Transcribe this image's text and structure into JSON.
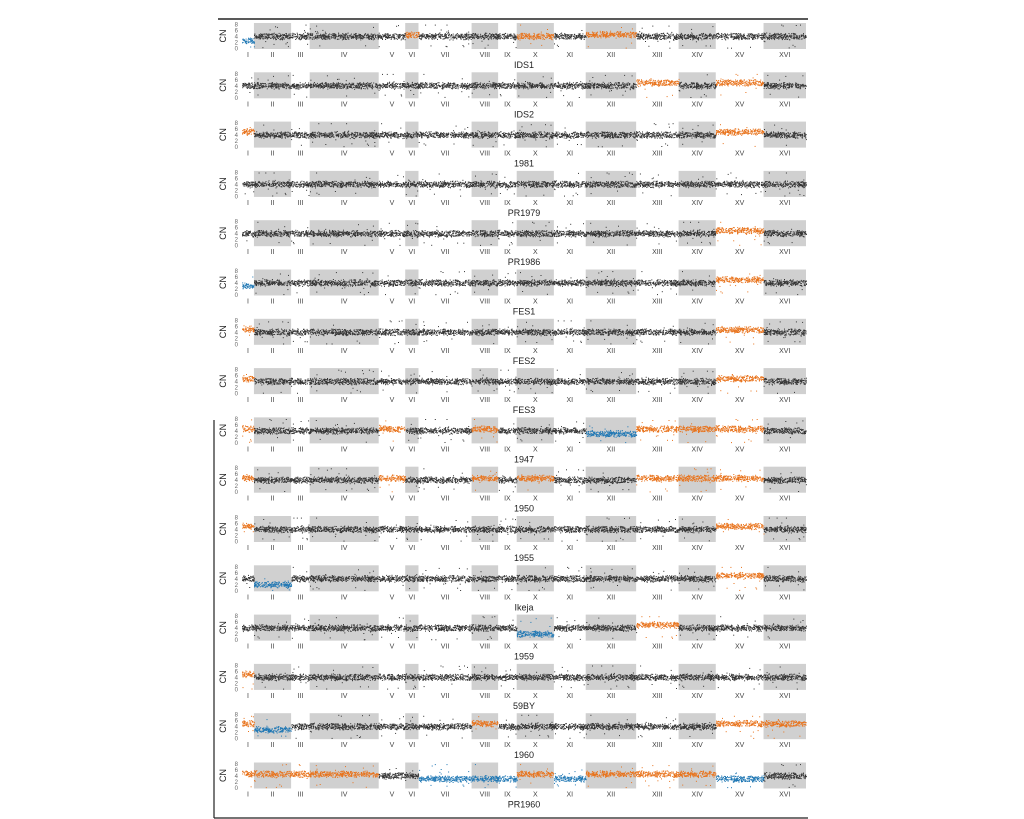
{
  "chart_data": {
    "type": "scatter",
    "ylabel": "CN",
    "y_ticks": [
      "8",
      "6",
      "4",
      "2",
      "0"
    ],
    "ylim": [
      0,
      8
    ],
    "chromosomes": [
      "I",
      "II",
      "III",
      "IV",
      "V",
      "VI",
      "VII",
      "VIII",
      "IX",
      "X",
      "XI",
      "XII",
      "XIII",
      "XIV",
      "XV",
      "XVI"
    ],
    "chromosome_shading": "alternating grey bands",
    "colors": {
      "normal": "#333333",
      "gain": "#e8731c",
      "loss": "#1f77b4",
      "band": "#c8c8c8"
    },
    "panels": [
      {
        "name": "IDS1",
        "segments": [
          "0:4.6",
          "5:4.6",
          "9:4",
          "11:4.6"
        ],
        "losses": [
          "0:2.5"
        ]
      },
      {
        "name": "IDS2",
        "segments": [
          "12:5",
          "14:5"
        ],
        "losses": []
      },
      {
        "name": "1981",
        "segments": [
          "0:5",
          "14:5"
        ],
        "losses": []
      },
      {
        "name": "PR1979",
        "segments": [],
        "losses": []
      },
      {
        "name": "PR1986",
        "segments": [
          "14:5"
        ],
        "losses": []
      },
      {
        "name": "FES1",
        "segments": [
          "0:5",
          "14:5"
        ],
        "losses": [
          "0:3"
        ]
      },
      {
        "name": "FES2",
        "segments": [
          "0:5",
          "14:4.8"
        ],
        "losses": []
      },
      {
        "name": "FES3",
        "segments": [
          "0:5",
          "14:5"
        ],
        "losses": []
      },
      {
        "name": "1947",
        "segments": [
          "0:4.6",
          "4:4.6",
          "7:4.6",
          "12:4.6",
          "13:4.6",
          "14:4.6"
        ],
        "losses": [
          "11:3"
        ]
      },
      {
        "name": "1950",
        "segments": [
          "0:4.6",
          "4:4.6",
          "7:4.6",
          "9:4.6",
          "12:4.6",
          "13:4.6",
          "14:4.6"
        ],
        "losses": []
      },
      {
        "name": "1955",
        "segments": [
          "0:5",
          "14:5"
        ],
        "losses": []
      },
      {
        "name": "Ikeja",
        "segments": [
          "14:5"
        ],
        "losses": [
          "1:2"
        ]
      },
      {
        "name": "1959",
        "segments": [
          "12:5"
        ],
        "losses": [
          "9:2"
        ]
      },
      {
        "name": "59BY",
        "segments": [
          "0:5"
        ],
        "losses": []
      },
      {
        "name": "1960",
        "segments": [
          "0:5",
          "7:5",
          "14:5",
          "15:5"
        ],
        "losses": [
          "1:3"
        ]
      },
      {
        "name": "PR1960",
        "segments": [
          "0:4.6",
          "1:4.6",
          "2:4.6",
          "3:4.6",
          "9:4.6",
          "11:4.6",
          "12:4.6",
          "13:4.6"
        ],
        "losses": [
          "6:3",
          "7:3",
          "8:3",
          "10:3",
          "14:3"
        ]
      }
    ]
  }
}
